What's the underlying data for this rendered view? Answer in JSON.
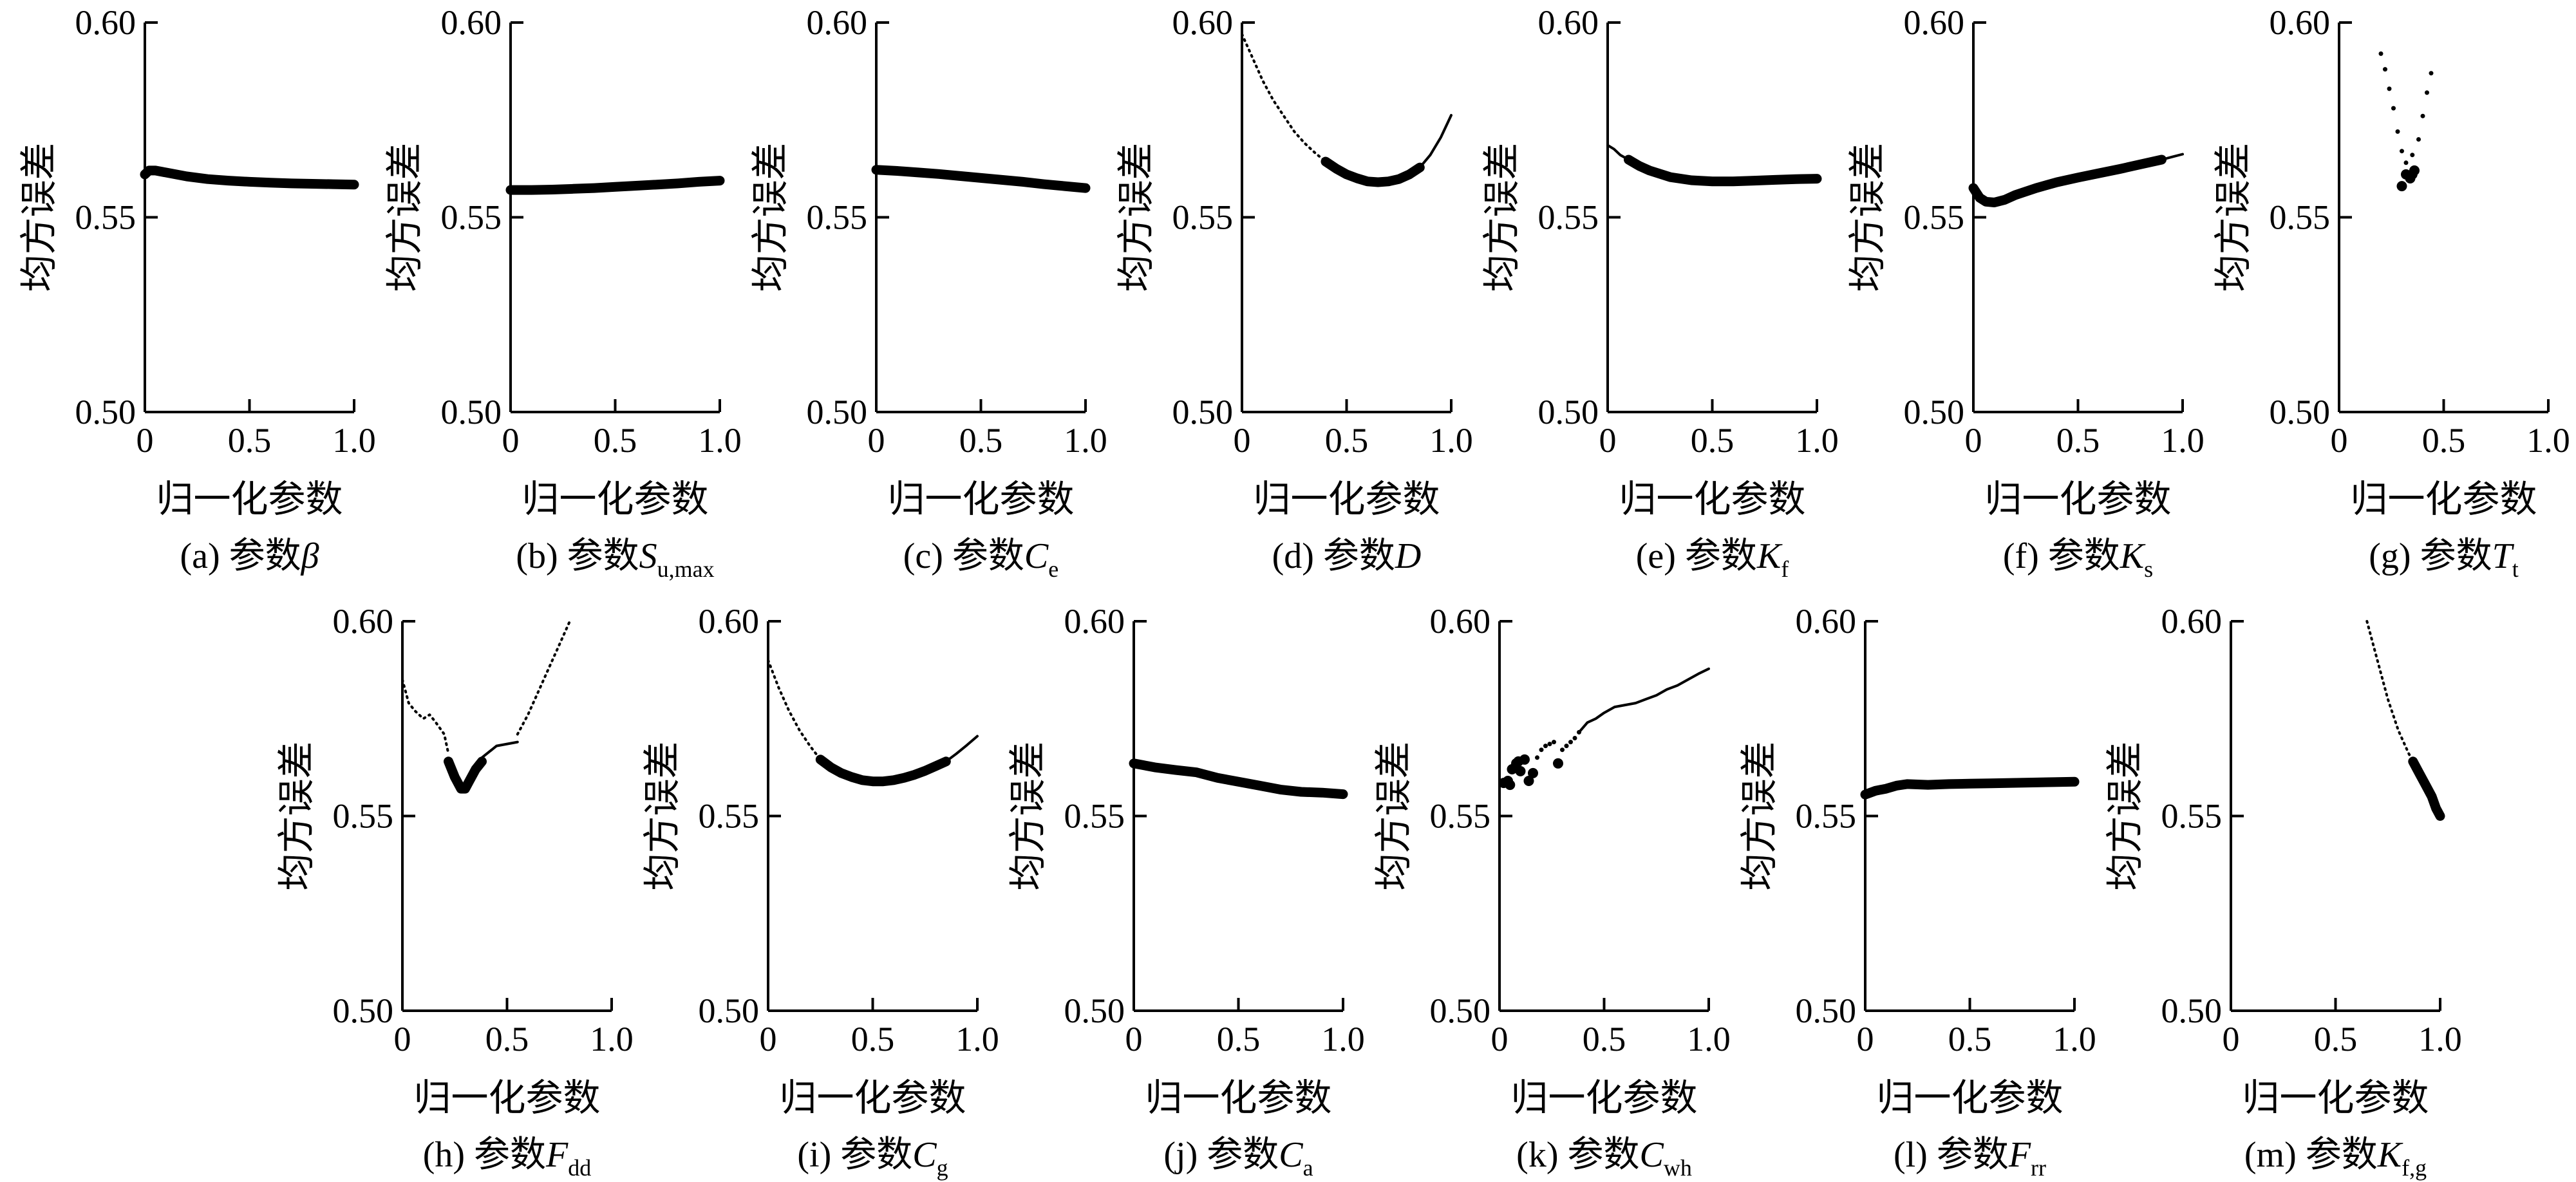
{
  "chart_data": [
    {
      "type": "line",
      "caption": {
        "prefix": "(a) ",
        "label": "参数",
        "symbol": "β",
        "sub": ""
      },
      "xlabel": "归一化参数",
      "ylabel": "均方误差",
      "xlim": [
        0,
        1
      ],
      "ylim": [
        0.5,
        0.6
      ],
      "xticks": [
        "0",
        "0.5",
        "1.0"
      ],
      "yticks": [
        "0.50",
        "0.55",
        "0.60"
      ],
      "series": [
        {
          "style": "thick",
          "x": [
            0,
            0.02,
            0.05,
            0.1,
            0.2,
            0.3,
            0.4,
            0.5,
            0.6,
            0.7,
            0.8,
            0.9,
            1.0
          ],
          "y": [
            0.561,
            0.562,
            0.562,
            0.5615,
            0.5605,
            0.5598,
            0.5594,
            0.5591,
            0.5589,
            0.5587,
            0.5586,
            0.5585,
            0.5584
          ]
        }
      ]
    },
    {
      "type": "line",
      "caption": {
        "prefix": "(b) ",
        "label": "参数",
        "symbol": "S",
        "sub": "u,max"
      },
      "xlabel": "归一化参数",
      "ylabel": "均方误差",
      "xlim": [
        0,
        1
      ],
      "ylim": [
        0.5,
        0.6
      ],
      "xticks": [
        "0",
        "0.5",
        "1.0"
      ],
      "yticks": [
        "0.50",
        "0.55",
        "0.60"
      ],
      "series": [
        {
          "style": "thick",
          "x": [
            0,
            0.1,
            0.2,
            0.3,
            0.4,
            0.5,
            0.6,
            0.7,
            0.8,
            0.9,
            1.0
          ],
          "y": [
            0.557,
            0.557,
            0.5571,
            0.5573,
            0.5575,
            0.5578,
            0.5581,
            0.5584,
            0.5587,
            0.5591,
            0.5594
          ]
        }
      ]
    },
    {
      "type": "line",
      "caption": {
        "prefix": "(c) ",
        "label": "参数",
        "symbol": "C",
        "sub": "e"
      },
      "xlabel": "归一化参数",
      "ylabel": "均方误差",
      "xlim": [
        0,
        1
      ],
      "ylim": [
        0.5,
        0.6
      ],
      "xticks": [
        "0",
        "0.5",
        "1.0"
      ],
      "yticks": [
        "0.50",
        "0.55",
        "0.60"
      ],
      "series": [
        {
          "style": "thick",
          "x": [
            0,
            0.1,
            0.2,
            0.3,
            0.4,
            0.5,
            0.6,
            0.7,
            0.8,
            0.9,
            1.0
          ],
          "y": [
            0.5622,
            0.5619,
            0.5615,
            0.5611,
            0.5606,
            0.5601,
            0.5596,
            0.5591,
            0.5585,
            0.558,
            0.5575
          ]
        }
      ]
    },
    {
      "type": "line",
      "caption": {
        "prefix": "(d) ",
        "label": "参数",
        "symbol": "D",
        "sub": ""
      },
      "xlabel": "归一化参数",
      "ylabel": "均方误差",
      "xlim": [
        0,
        1
      ],
      "ylim": [
        0.5,
        0.6
      ],
      "xticks": [
        "0",
        "0.5",
        "1.0"
      ],
      "yticks": [
        "0.50",
        "0.55",
        "0.60"
      ],
      "series": [
        {
          "style": "dotted",
          "x": [
            0,
            0.05,
            0.1,
            0.15,
            0.2,
            0.25,
            0.3,
            0.35,
            0.4
          ],
          "y": [
            0.597,
            0.591,
            0.585,
            0.58,
            0.576,
            0.572,
            0.569,
            0.5665,
            0.5643
          ]
        },
        {
          "style": "thick",
          "x": [
            0.4,
            0.45,
            0.5,
            0.55,
            0.6,
            0.65,
            0.7,
            0.75,
            0.8,
            0.85
          ],
          "y": [
            0.5643,
            0.5625,
            0.561,
            0.56,
            0.5592,
            0.559,
            0.5592,
            0.5598,
            0.561,
            0.5628
          ]
        },
        {
          "style": "thin",
          "x": [
            0.85,
            0.9,
            0.95,
            1.0
          ],
          "y": [
            0.5628,
            0.566,
            0.5705,
            0.5762
          ]
        }
      ]
    },
    {
      "type": "line",
      "caption": {
        "prefix": "(e) ",
        "label": "参数",
        "symbol": "K",
        "sub": "f"
      },
      "xlabel": "归一化参数",
      "ylabel": "均方误差",
      "xlim": [
        0,
        1
      ],
      "ylim": [
        0.5,
        0.6
      ],
      "xticks": [
        "0",
        "0.5",
        "1.0"
      ],
      "yticks": [
        "0.50",
        "0.55",
        "0.60"
      ],
      "series": [
        {
          "style": "thin",
          "x": [
            0,
            0.03,
            0.06,
            0.1
          ],
          "y": [
            0.5685,
            0.5675,
            0.566,
            0.5648
          ]
        },
        {
          "style": "thick",
          "x": [
            0.1,
            0.15,
            0.2,
            0.3,
            0.4,
            0.5,
            0.6,
            0.7,
            0.8,
            0.9,
            1.0
          ],
          "y": [
            0.5648,
            0.5632,
            0.562,
            0.5603,
            0.5595,
            0.5592,
            0.5592,
            0.5594,
            0.5596,
            0.5598,
            0.5599
          ]
        }
      ]
    },
    {
      "type": "line",
      "caption": {
        "prefix": "(f) ",
        "label": "参数",
        "symbol": "K",
        "sub": "s"
      },
      "xlabel": "归一化参数",
      "ylabel": "均方误差",
      "xlim": [
        0,
        1
      ],
      "ylim": [
        0.5,
        0.6
      ],
      "xticks": [
        "0",
        "0.5",
        "1.0"
      ],
      "yticks": [
        "0.50",
        "0.55",
        "0.60"
      ],
      "series": [
        {
          "style": "thick",
          "x": [
            0,
            0.03,
            0.06,
            0.1,
            0.15,
            0.2,
            0.3,
            0.4,
            0.5,
            0.6,
            0.7,
            0.8,
            0.9
          ],
          "y": [
            0.5575,
            0.555,
            0.554,
            0.5538,
            0.5545,
            0.5557,
            0.5575,
            0.559,
            0.5602,
            0.5613,
            0.5624,
            0.5636,
            0.5648
          ]
        },
        {
          "style": "thin",
          "x": [
            0.9,
            0.95,
            1.0
          ],
          "y": [
            0.5648,
            0.5655,
            0.5662
          ]
        }
      ]
    },
    {
      "type": "scatter",
      "caption": {
        "prefix": "(g) ",
        "label": "参数",
        "symbol": "T",
        "sub": "t"
      },
      "xlabel": "归一化参数",
      "ylabel": "均方误差",
      "xlim": [
        0,
        1
      ],
      "ylim": [
        0.5,
        0.6
      ],
      "xticks": [
        "0",
        "0.5",
        "1.0"
      ],
      "yticks": [
        "0.50",
        "0.55",
        "0.60"
      ],
      "series": [
        {
          "style": "smalldots",
          "x": [
            0.2,
            0.22,
            0.24,
            0.26,
            0.28,
            0.3,
            0.32,
            0.35,
            0.38,
            0.4,
            0.42,
            0.44
          ],
          "y": [
            0.592,
            0.588,
            0.583,
            0.578,
            0.572,
            0.567,
            0.564,
            0.566,
            0.57,
            0.576,
            0.582,
            0.587
          ]
        },
        {
          "style": "bigdots",
          "x": [
            0.3,
            0.32,
            0.34,
            0.36,
            0.35
          ],
          "y": [
            0.558,
            0.561,
            0.56,
            0.562,
            0.561
          ]
        }
      ]
    },
    {
      "type": "line",
      "caption": {
        "prefix": "(h) ",
        "label": "参数",
        "symbol": "F",
        "sub": "dd"
      },
      "xlabel": "归一化参数",
      "ylabel": "均方误差",
      "xlim": [
        0,
        1
      ],
      "ylim": [
        0.5,
        0.6
      ],
      "xticks": [
        "0",
        "0.5",
        "1.0"
      ],
      "yticks": [
        "0.50",
        "0.55",
        "0.60"
      ],
      "series": [
        {
          "style": "dotted",
          "x": [
            0,
            0.03,
            0.06,
            0.1,
            0.13,
            0.16,
            0.2,
            0.22
          ],
          "y": [
            0.585,
            0.579,
            0.577,
            0.575,
            0.576,
            0.574,
            0.571,
            0.566
          ]
        },
        {
          "style": "thick",
          "x": [
            0.22,
            0.25,
            0.28,
            0.3,
            0.32,
            0.35,
            0.38
          ],
          "y": [
            0.564,
            0.56,
            0.557,
            0.557,
            0.559,
            0.562,
            0.564
          ]
        },
        {
          "style": "thin",
          "x": [
            0.38,
            0.45,
            0.55
          ],
          "y": [
            0.565,
            0.568,
            0.569
          ]
        },
        {
          "style": "dotted",
          "x": [
            0.55,
            0.6,
            0.65,
            0.7,
            0.75,
            0.8
          ],
          "y": [
            0.571,
            0.576,
            0.582,
            0.588,
            0.594,
            0.6
          ]
        }
      ]
    },
    {
      "type": "line",
      "caption": {
        "prefix": "(i) ",
        "label": "参数",
        "symbol": "C",
        "sub": "g"
      },
      "xlabel": "归一化参数",
      "ylabel": "均方误差",
      "xlim": [
        0,
        1
      ],
      "ylim": [
        0.5,
        0.6
      ],
      "xticks": [
        "0",
        "0.5",
        "1.0"
      ],
      "yticks": [
        "0.50",
        "0.55",
        "0.60"
      ],
      "series": [
        {
          "style": "dotted",
          "x": [
            0,
            0.05,
            0.1,
            0.15,
            0.2,
            0.25
          ],
          "y": [
            0.59,
            0.583,
            0.577,
            0.572,
            0.568,
            0.5645
          ]
        },
        {
          "style": "thick",
          "x": [
            0.25,
            0.3,
            0.35,
            0.4,
            0.45,
            0.5,
            0.55,
            0.6,
            0.65,
            0.7,
            0.75,
            0.8,
            0.85
          ],
          "y": [
            0.5645,
            0.5625,
            0.561,
            0.56,
            0.5592,
            0.5589,
            0.5589,
            0.5592,
            0.5598,
            0.5606,
            0.5616,
            0.5628,
            0.564
          ]
        },
        {
          "style": "thin",
          "x": [
            0.85,
            0.9,
            0.95,
            1.0
          ],
          "y": [
            0.564,
            0.566,
            0.5682,
            0.5705
          ]
        }
      ]
    },
    {
      "type": "line",
      "caption": {
        "prefix": "(j) ",
        "label": "参数",
        "symbol": "C",
        "sub": "a"
      },
      "xlabel": "归一化参数",
      "ylabel": "均方误差",
      "xlim": [
        0,
        1
      ],
      "ylim": [
        0.5,
        0.6
      ],
      "xticks": [
        "0",
        "0.5",
        "1.0"
      ],
      "yticks": [
        "0.50",
        "0.55",
        "0.60"
      ],
      "series": [
        {
          "style": "thick",
          "x": [
            0,
            0.1,
            0.2,
            0.3,
            0.4,
            0.5,
            0.6,
            0.7,
            0.8,
            0.9,
            1.0
          ],
          "y": [
            0.5635,
            0.5625,
            0.5618,
            0.5612,
            0.5598,
            0.5588,
            0.5578,
            0.5568,
            0.5562,
            0.556,
            0.5556
          ]
        }
      ]
    },
    {
      "type": "line",
      "caption": {
        "prefix": "(k) ",
        "label": "参数",
        "symbol": "C",
        "sub": "wh"
      },
      "xlabel": "归一化参数",
      "ylabel": "均方误差",
      "xlim": [
        0,
        1
      ],
      "ylim": [
        0.5,
        0.6
      ],
      "xticks": [
        "0",
        "0.5",
        "1.0"
      ],
      "yticks": [
        "0.50",
        "0.55",
        "0.60"
      ],
      "series": [
        {
          "style": "bigdots",
          "x": [
            0.02,
            0.04,
            0.06,
            0.08,
            0.1,
            0.12,
            0.14,
            0.16,
            0.05,
            0.09,
            0.28
          ],
          "y": [
            0.5585,
            0.559,
            0.562,
            0.5635,
            0.5615,
            0.5645,
            0.559,
            0.561,
            0.558,
            0.564,
            0.5635
          ]
        },
        {
          "style": "smalldots",
          "x": [
            0.18,
            0.2,
            0.22,
            0.24,
            0.26,
            0.3,
            0.32,
            0.34,
            0.36,
            0.38
          ],
          "y": [
            0.565,
            0.567,
            0.568,
            0.5685,
            0.569,
            0.567,
            0.568,
            0.569,
            0.57,
            0.5715
          ]
        },
        {
          "style": "thin",
          "x": [
            0.38,
            0.42,
            0.46,
            0.5,
            0.55,
            0.6,
            0.65,
            0.7,
            0.75,
            0.8,
            0.85,
            0.9,
            0.95,
            1.0
          ],
          "y": [
            0.5715,
            0.574,
            0.575,
            0.5765,
            0.578,
            0.5785,
            0.579,
            0.58,
            0.581,
            0.5825,
            0.5835,
            0.585,
            0.5865,
            0.5878
          ]
        }
      ]
    },
    {
      "type": "line",
      "caption": {
        "prefix": "(l) ",
        "label": "参数",
        "symbol": "F",
        "sub": "rr"
      },
      "xlabel": "归一化参数",
      "ylabel": "均方误差",
      "xlim": [
        0,
        1
      ],
      "ylim": [
        0.5,
        0.6
      ],
      "xticks": [
        "0",
        "0.5",
        "1.0"
      ],
      "yticks": [
        "0.50",
        "0.55",
        "0.60"
      ],
      "series": [
        {
          "style": "thick",
          "x": [
            0,
            0.05,
            0.1,
            0.15,
            0.2,
            0.3,
            0.4,
            0.5,
            0.6,
            0.7,
            0.8,
            0.9,
            1.0
          ],
          "y": [
            0.5555,
            0.5565,
            0.557,
            0.5578,
            0.5582,
            0.558,
            0.5582,
            0.5583,
            0.5584,
            0.5585,
            0.5586,
            0.5587,
            0.5588
          ]
        }
      ]
    },
    {
      "type": "line",
      "caption": {
        "prefix": "(m) ",
        "label": "参数",
        "symbol": "K",
        "sub": "f,g"
      },
      "xlabel": "归一化参数",
      "ylabel": "均方误差",
      "xlim": [
        0,
        1
      ],
      "ylim": [
        0.5,
        0.6
      ],
      "xticks": [
        "0",
        "0.5",
        "1.0"
      ],
      "yticks": [
        "0.50",
        "0.55",
        "0.60"
      ],
      "series": [
        {
          "style": "dotted",
          "x": [
            0.65,
            0.7,
            0.75,
            0.8,
            0.85,
            0.87
          ],
          "y": [
            0.6,
            0.59,
            0.58,
            0.572,
            0.566,
            0.564
          ]
        },
        {
          "style": "thick",
          "x": [
            0.87,
            0.9,
            0.93,
            0.96,
            0.98,
            1.0
          ],
          "y": [
            0.564,
            0.561,
            0.558,
            0.555,
            0.552,
            0.55
          ]
        }
      ]
    }
  ]
}
